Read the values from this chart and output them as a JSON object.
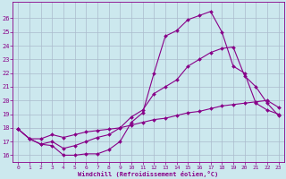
{
  "bg_color": "#cce8ee",
  "line_color": "#880088",
  "grid_color": "#aabbcc",
  "xlabel": "Windchill (Refroidissement éolien,°C)",
  "ylim": [
    15.5,
    27.2
  ],
  "xlim": [
    -0.5,
    23.5
  ],
  "yticks": [
    16,
    17,
    18,
    19,
    20,
    21,
    22,
    23,
    24,
    25,
    26
  ],
  "xticks": [
    0,
    1,
    2,
    3,
    4,
    5,
    6,
    7,
    8,
    9,
    10,
    11,
    12,
    13,
    14,
    15,
    16,
    17,
    18,
    19,
    20,
    21,
    22,
    23
  ],
  "curve1_x": [
    0,
    1,
    2,
    3,
    4,
    5,
    6,
    7,
    8,
    9,
    10,
    11,
    12,
    13,
    14,
    15,
    16,
    17,
    18,
    19,
    20,
    21,
    22,
    23
  ],
  "curve1_y": [
    17.9,
    17.2,
    16.8,
    16.7,
    16.0,
    16.0,
    16.1,
    16.1,
    16.4,
    17.0,
    18.4,
    19.1,
    22.0,
    24.7,
    25.1,
    25.9,
    26.2,
    26.5,
    25.0,
    22.5,
    22.0,
    19.8,
    19.3,
    19.0
  ],
  "curve2_x": [
    0,
    1,
    2,
    3,
    4,
    5,
    6,
    7,
    8,
    9,
    10,
    11,
    12,
    13,
    14,
    15,
    16,
    17,
    18,
    19,
    20,
    21,
    22,
    23
  ],
  "curve2_y": [
    17.9,
    17.2,
    16.8,
    17.0,
    16.5,
    16.7,
    17.0,
    17.3,
    17.5,
    18.0,
    18.8,
    19.3,
    20.5,
    21.0,
    21.5,
    22.5,
    23.0,
    23.5,
    23.8,
    23.9,
    21.8,
    21.0,
    19.8,
    18.9
  ],
  "curve3_x": [
    0,
    1,
    2,
    3,
    4,
    5,
    6,
    7,
    8,
    9,
    10,
    11,
    12,
    13,
    14,
    15,
    16,
    17,
    18,
    19,
    20,
    21,
    22,
    23
  ],
  "curve3_y": [
    17.9,
    17.2,
    17.2,
    17.5,
    17.3,
    17.5,
    17.7,
    17.8,
    17.9,
    18.0,
    18.2,
    18.4,
    18.6,
    18.7,
    18.9,
    19.1,
    19.2,
    19.4,
    19.6,
    19.7,
    19.8,
    19.9,
    20.0,
    19.5
  ]
}
